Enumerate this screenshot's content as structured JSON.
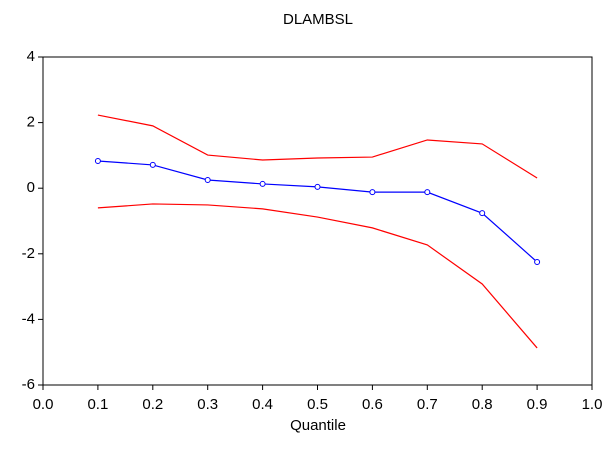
{
  "chart_data": {
    "type": "line",
    "title": "DLAMBSL",
    "x_label": "Quantile",
    "x": [
      0.1,
      0.2,
      0.3,
      0.4,
      0.5,
      0.6,
      0.7,
      0.8,
      0.9
    ],
    "series": [
      {
        "color": "#ff0000",
        "markers": false,
        "values": [
          2.23,
          1.9,
          1.01,
          0.86,
          0.92,
          0.95,
          1.47,
          1.35,
          0.31
        ]
      },
      {
        "color": "#0000ff",
        "markers": true,
        "values": [
          0.83,
          0.71,
          0.25,
          0.13,
          0.04,
          -0.12,
          -0.12,
          -0.76,
          -2.25
        ]
      },
      {
        "color": "#ff0000",
        "markers": false,
        "values": [
          -0.6,
          -0.48,
          -0.51,
          -0.63,
          -0.88,
          -1.21,
          -1.73,
          -2.92,
          -4.87
        ]
      }
    ],
    "xlim": [
      0,
      1
    ],
    "xticks": [
      {
        "value": 0,
        "label": "0.0"
      },
      0.1,
      0.2,
      0.3,
      0.4,
      0.5,
      0.6,
      0.7,
      0.8,
      0.9,
      {
        "value": 1,
        "label": "1.0"
      }
    ],
    "ylim": [
      -6,
      4
    ],
    "yticks": [
      -6,
      -4,
      -2,
      0,
      2,
      4
    ],
    "grid": false
  }
}
